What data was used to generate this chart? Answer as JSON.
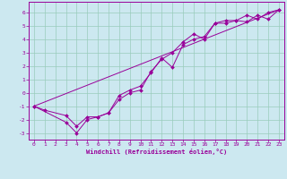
{
  "bg_color": "#cce8f0",
  "line_color": "#990099",
  "grid_color": "#99ccbb",
  "xlabel": "Windchill (Refroidissement éolien,°C)",
  "xlim": [
    -0.5,
    23.5
  ],
  "ylim": [
    -3.5,
    6.8
  ],
  "yticks": [
    -3,
    -2,
    -1,
    0,
    1,
    2,
    3,
    4,
    5,
    6
  ],
  "xticks": [
    0,
    1,
    2,
    3,
    4,
    5,
    6,
    7,
    8,
    9,
    10,
    11,
    12,
    13,
    14,
    15,
    16,
    17,
    18,
    19,
    20,
    21,
    22,
    23
  ],
  "line1_x": [
    0,
    1,
    3,
    4,
    5,
    6,
    7,
    8,
    9,
    10,
    11,
    12,
    13,
    14,
    15,
    16,
    17,
    18,
    19,
    20,
    21,
    22,
    23
  ],
  "line1_y": [
    -1.0,
    -1.3,
    -1.7,
    -2.5,
    -1.8,
    -1.8,
    -1.5,
    -0.2,
    0.2,
    0.5,
    1.5,
    2.6,
    1.9,
    3.6,
    4.0,
    4.2,
    5.2,
    5.4,
    5.4,
    5.8,
    5.5,
    6.0,
    6.2
  ],
  "line2_x": [
    0,
    3,
    4,
    5,
    6,
    7,
    8,
    9,
    10,
    11,
    12,
    13,
    14,
    15,
    16,
    17,
    18,
    19,
    20,
    21,
    22,
    23
  ],
  "line2_y": [
    -1.0,
    -2.2,
    -3.0,
    -2.0,
    -1.8,
    -1.5,
    -0.5,
    0.0,
    0.2,
    1.6,
    2.5,
    3.0,
    3.8,
    4.4,
    4.0,
    5.2,
    5.2,
    5.4,
    5.3,
    5.8,
    5.5,
    6.2
  ],
  "line3_x": [
    0,
    23
  ],
  "line3_y": [
    -1.0,
    6.2
  ]
}
